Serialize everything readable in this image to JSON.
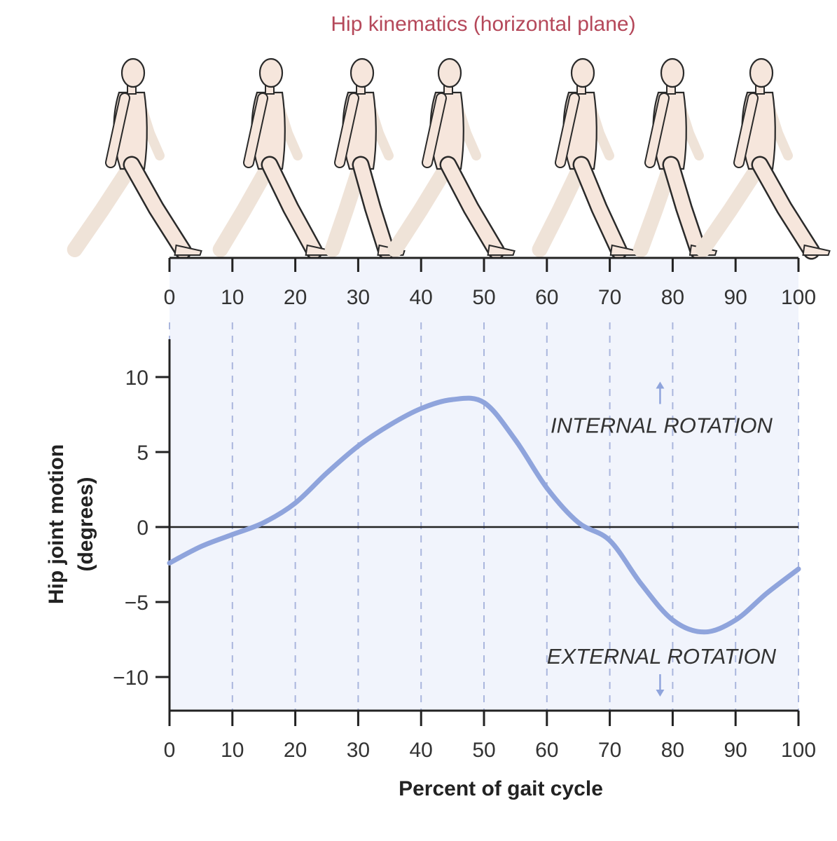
{
  "colors": {
    "title": "#b5485a",
    "curve": "#8fa4dc",
    "plot_bg": "#f1f4fc",
    "axis": "#222222",
    "grid": "#aab6dd",
    "figure_fill": "#f6e6dc",
    "figure_stroke": "#2a2a2a",
    "figure_ghost": "#efe3d8"
  },
  "figure_strip": {
    "walker_icons": [
      "walking-figure-icon",
      "walking-figure-icon",
      "walking-figure-icon",
      "walking-figure-icon",
      "walking-figure-icon",
      "walking-figure-icon",
      "walking-figure-icon"
    ]
  },
  "chart_data": {
    "type": "line",
    "title": "Hip kinematics (horizontal plane)",
    "xlabel": "Percent of gait cycle",
    "ylabel_lines": [
      "Hip joint motion",
      "(degrees)"
    ],
    "xlim": [
      0,
      100
    ],
    "ylim": [
      -12.5,
      12.5
    ],
    "x_ticks": [
      0,
      10,
      20,
      30,
      40,
      50,
      60,
      70,
      80,
      90,
      100
    ],
    "x_tick_labels": [
      "0",
      "10",
      "20",
      "30",
      "40",
      "50",
      "60",
      "70",
      "80",
      "90",
      "100"
    ],
    "y_ticks": [
      10,
      5,
      0,
      -5,
      -10
    ],
    "y_tick_labels": [
      "10",
      "5",
      "0",
      "−5",
      "−10"
    ],
    "grid": "vertical dashed at x ticks",
    "zero_line": true,
    "annotations": [
      {
        "text": "INTERNAL ROTATION",
        "x": 78,
        "y": 6.8,
        "arrow": "up"
      },
      {
        "text": "EXTERNAL ROTATION",
        "x": 78,
        "y": -8.6,
        "arrow": "down"
      }
    ],
    "series": [
      {
        "x": [
          0,
          5,
          10,
          15,
          20,
          25,
          30,
          35,
          40,
          45,
          50,
          55,
          60,
          65,
          70,
          75,
          80,
          85,
          90,
          95,
          100
        ],
        "y": [
          -2.4,
          -1.3,
          -0.5,
          0.3,
          1.6,
          3.6,
          5.4,
          6.8,
          7.9,
          8.5,
          8.3,
          5.8,
          2.6,
          0.3,
          -0.9,
          -3.8,
          -6.2,
          -7.0,
          -6.2,
          -4.4,
          -2.8
        ]
      }
    ]
  }
}
